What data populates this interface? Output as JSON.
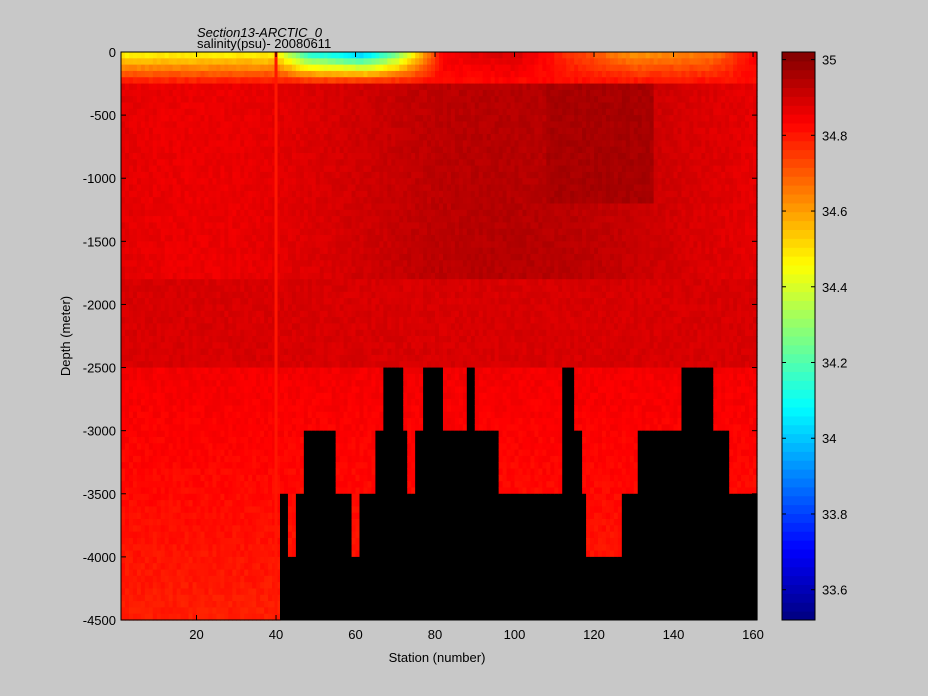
{
  "chart_data": {
    "type": "heatmap",
    "title": "Section13-ARCTIC_0",
    "subtitle": "salinity(psu)- 20080611",
    "xlabel": "Station (number)",
    "ylabel": "Depth (meter)",
    "xlim": [
      1,
      161
    ],
    "ylim": [
      -4500,
      0
    ],
    "xticks": [
      20,
      40,
      60,
      80,
      100,
      120,
      140,
      160
    ],
    "yticks": [
      0,
      -500,
      -1000,
      -1500,
      -2000,
      -2500,
      -3000,
      -3500,
      -4000,
      -4500
    ],
    "colorbar": {
      "min": 33.52,
      "max": 35.02,
      "ticks": [
        33.6,
        33.8,
        34,
        34.2,
        34.4,
        34.6,
        34.8,
        35
      ],
      "colormap": "jet"
    },
    "highlight_station": 40,
    "no_data_color": "#000000",
    "background_color": "#c8c8c8",
    "surface_salinity_profile": [
      {
        "station": 1,
        "salinity": 34.45
      },
      {
        "station": 40,
        "salinity": 34.45
      },
      {
        "station": 48,
        "salinity": 34.1
      },
      {
        "station": 62,
        "salinity": 33.95
      },
      {
        "station": 70,
        "salinity": 34.2
      },
      {
        "station": 82,
        "salinity": 34.85
      },
      {
        "station": 100,
        "salinity": 34.9
      },
      {
        "station": 112,
        "salinity": 34.78
      },
      {
        "station": 130,
        "salinity": 34.6
      },
      {
        "station": 150,
        "salinity": 34.65
      },
      {
        "station": 161,
        "salinity": 34.85
      }
    ],
    "bottom_depth": [
      {
        "station": 1,
        "depth": -4500
      },
      {
        "station": 40,
        "depth": -4500
      },
      {
        "station": 41,
        "depth": -3500
      },
      {
        "station": 43,
        "depth": -4000
      },
      {
        "station": 45,
        "depth": -3500
      },
      {
        "station": 47,
        "depth": -3000
      },
      {
        "station": 55,
        "depth": -3500
      },
      {
        "station": 59,
        "depth": -4000
      },
      {
        "station": 61,
        "depth": -3500
      },
      {
        "station": 65,
        "depth": -3000
      },
      {
        "station": 67,
        "depth": -2500
      },
      {
        "station": 72,
        "depth": -3000
      },
      {
        "station": 73,
        "depth": -3500
      },
      {
        "station": 75,
        "depth": -3000
      },
      {
        "station": 77,
        "depth": -2500
      },
      {
        "station": 82,
        "depth": -3000
      },
      {
        "station": 88,
        "depth": -2500
      },
      {
        "station": 90,
        "depth": -3000
      },
      {
        "station": 96,
        "depth": -3500
      },
      {
        "station": 112,
        "depth": -2500
      },
      {
        "station": 115,
        "depth": -3000
      },
      {
        "station": 117,
        "depth": -3500
      },
      {
        "station": 118,
        "depth": -4000
      },
      {
        "station": 127,
        "depth": -3500
      },
      {
        "station": 131,
        "depth": -3000
      },
      {
        "station": 142,
        "depth": -2500
      },
      {
        "station": 150,
        "depth": -3000
      },
      {
        "station": 154,
        "depth": -3500
      },
      {
        "station": 161,
        "depth": -3500
      }
    ]
  }
}
